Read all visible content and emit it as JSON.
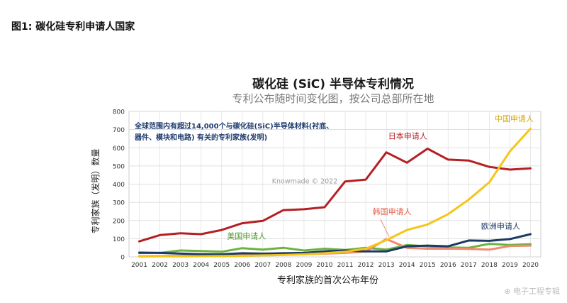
{
  "page": {
    "heading": "图1: 碳化硅专利申请人国家",
    "watermark": "⊕ 电子工程专辑"
  },
  "chart_data": {
    "type": "line",
    "title": "碳化硅 (SiC) 半导体专利情况",
    "subtitle": "专利公布随时间变化图，按公司总部所在地",
    "xlabel": "专利家族的首次公布年份",
    "ylabel": "专利家族（发明）数量",
    "x": [
      2001,
      2002,
      2003,
      2004,
      2005,
      2006,
      2007,
      2008,
      2009,
      2010,
      2011,
      2012,
      2013,
      2014,
      2015,
      2016,
      2017,
      2018,
      2019,
      2020
    ],
    "ylim": [
      0,
      800
    ],
    "yticks": [
      0,
      100,
      200,
      300,
      400,
      500,
      600,
      700,
      800
    ],
    "grid": true,
    "note_lines": [
      "全球范围内有超过14,000个与碳化硅(SiC)半导体材料(衬底、",
      "器件、模块和电路) 有关的专利家族(发明)"
    ],
    "credit": "Knowmade © 2022",
    "series": [
      {
        "name": "日本申请人",
        "label": "日本申请人",
        "color": "#b51f24",
        "values": [
          85,
          120,
          130,
          125,
          148,
          185,
          198,
          257,
          262,
          273,
          415,
          425,
          575,
          518,
          595,
          535,
          530,
          495,
          480,
          487
        ]
      },
      {
        "name": "中国申请人",
        "label": "中国申请人",
        "color": "#f5c518",
        "values": [
          2,
          3,
          3,
          4,
          5,
          6,
          8,
          10,
          14,
          20,
          28,
          45,
          92,
          148,
          178,
          235,
          315,
          410,
          580,
          705
        ]
      },
      {
        "name": "美国申请人",
        "label": "美国申请人",
        "color": "#6db33f",
        "values": [
          25,
          22,
          35,
          32,
          28,
          48,
          40,
          50,
          35,
          45,
          38,
          50,
          40,
          65,
          58,
          52,
          50,
          72,
          65,
          70
        ]
      },
      {
        "name": "韩国申请人",
        "label": "韩国申请人",
        "color": "#f08a72",
        "values": [
          4,
          5,
          6,
          8,
          6,
          8,
          10,
          12,
          15,
          18,
          22,
          30,
          98,
          50,
          45,
          45,
          44,
          40,
          60,
          62
        ]
      },
      {
        "name": "欧洲申请人",
        "label": "欧洲申请人",
        "color": "#1c3a66",
        "values": [
          22,
          22,
          18,
          15,
          14,
          20,
          18,
          20,
          22,
          30,
          35,
          30,
          30,
          58,
          62,
          58,
          90,
          88,
          98,
          125
        ]
      }
    ]
  }
}
